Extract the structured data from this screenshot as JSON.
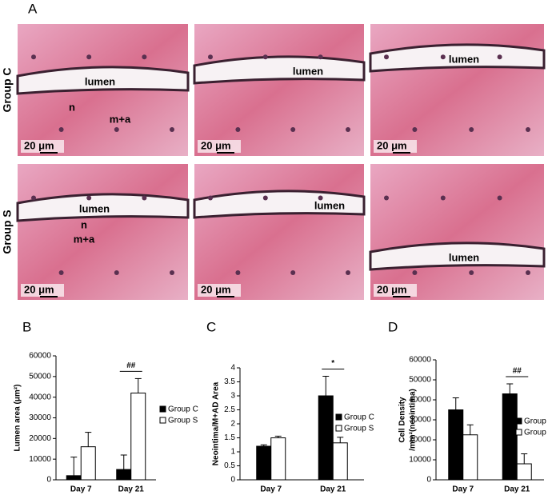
{
  "micrographs": {
    "panel": "A",
    "rows": [
      {
        "label": "Group C",
        "images": [
          {
            "labels": [
              "lumen",
              "n",
              "m+a"
            ],
            "scale": "20 μm"
          },
          {
            "labels": [
              "lumen"
            ],
            "scale": "20 μm"
          },
          {
            "labels": [
              "lumen"
            ],
            "scale": "20 μm"
          }
        ]
      },
      {
        "label": "Group S",
        "images": [
          {
            "labels": [
              "lumen",
              "n",
              "m+a"
            ],
            "scale": "20 μm"
          },
          {
            "labels": [
              "lumen"
            ],
            "scale": "20 μm"
          },
          {
            "labels": [
              "lumen"
            ],
            "scale": "20 μm"
          }
        ]
      }
    ]
  },
  "chart_data": [
    {
      "type": "bar",
      "panel": "B",
      "ylabel": [
        "Lumen area (μm²)"
      ],
      "categories": [
        "Day 7",
        "Day 21"
      ],
      "series": [
        {
          "name": "Group C",
          "color": "#000000",
          "values": [
            2000,
            5000
          ],
          "errors": [
            9000,
            7000
          ]
        },
        {
          "name": "Group S",
          "color": "#ffffff",
          "values": [
            16000,
            42000
          ],
          "errors": [
            7000,
            7000
          ]
        }
      ],
      "ylim": [
        0,
        60000
      ],
      "yticks": [
        0,
        10000,
        20000,
        30000,
        40000,
        50000,
        60000
      ],
      "annotation": "##"
    },
    {
      "type": "bar",
      "panel": "C",
      "ylabel": [
        "Neointima/M+AD Area"
      ],
      "categories": [
        "Day 7",
        "Day 21"
      ],
      "series": [
        {
          "name": "Group C",
          "color": "#000000",
          "values": [
            1.2,
            3.0
          ],
          "errors": [
            0.05,
            0.7
          ]
        },
        {
          "name": "Group S",
          "color": "#ffffff",
          "values": [
            1.5,
            1.32
          ],
          "errors": [
            0.06,
            0.2
          ]
        }
      ],
      "ylim": [
        0,
        4
      ],
      "yticks": [
        0,
        0.5,
        1,
        1.5,
        2,
        2.5,
        3,
        3.5,
        4
      ],
      "annotation": "*"
    },
    {
      "type": "bar",
      "panel": "D",
      "ylabel": [
        "Cell Density",
        "/mm²(neointima)"
      ],
      "categories": [
        "Day 7",
        "Day 21"
      ],
      "series": [
        {
          "name": "Group C",
          "color": "#000000",
          "values": [
            35000,
            43000
          ],
          "errors": [
            6000,
            5000
          ]
        },
        {
          "name": "Group S",
          "color": "#ffffff",
          "values": [
            22500,
            8000
          ],
          "errors": [
            5000,
            5000
          ]
        }
      ],
      "ylim": [
        0,
        60000
      ],
      "yticks": [
        0,
        10000,
        20000,
        30000,
        40000,
        50000,
        60000
      ],
      "annotation": "##"
    }
  ]
}
